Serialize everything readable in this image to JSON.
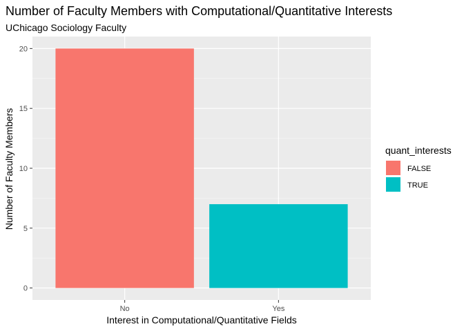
{
  "chart_data": {
    "type": "bar",
    "title": "Number of Faculty Members with Computational/Quantitative Interests",
    "subtitle": "UChicago Sociology Faculty",
    "xlabel": "Interest in Computational/Quantitative Fields",
    "ylabel": "Number of Faculty Members",
    "categories": [
      "No",
      "Yes"
    ],
    "values": [
      20,
      7
    ],
    "ylim": [
      -1,
      21
    ],
    "yticks": [
      0,
      5,
      10,
      15,
      20
    ],
    "ytick_labels": [
      "0",
      "5",
      "10",
      "15",
      "20"
    ],
    "grid": true,
    "fill_by_category": [
      "FALSE",
      "TRUE"
    ],
    "legend": {
      "title": "quant_interests",
      "placement": "right",
      "entries": [
        {
          "label": "FALSE",
          "color": "#F8766D"
        },
        {
          "label": "TRUE",
          "color": "#00BFC4"
        }
      ]
    }
  },
  "colors": {
    "panel_background": "#EBEBEB",
    "grid_major": "#FFFFFF",
    "grid_minor": "#F5F5F5"
  }
}
